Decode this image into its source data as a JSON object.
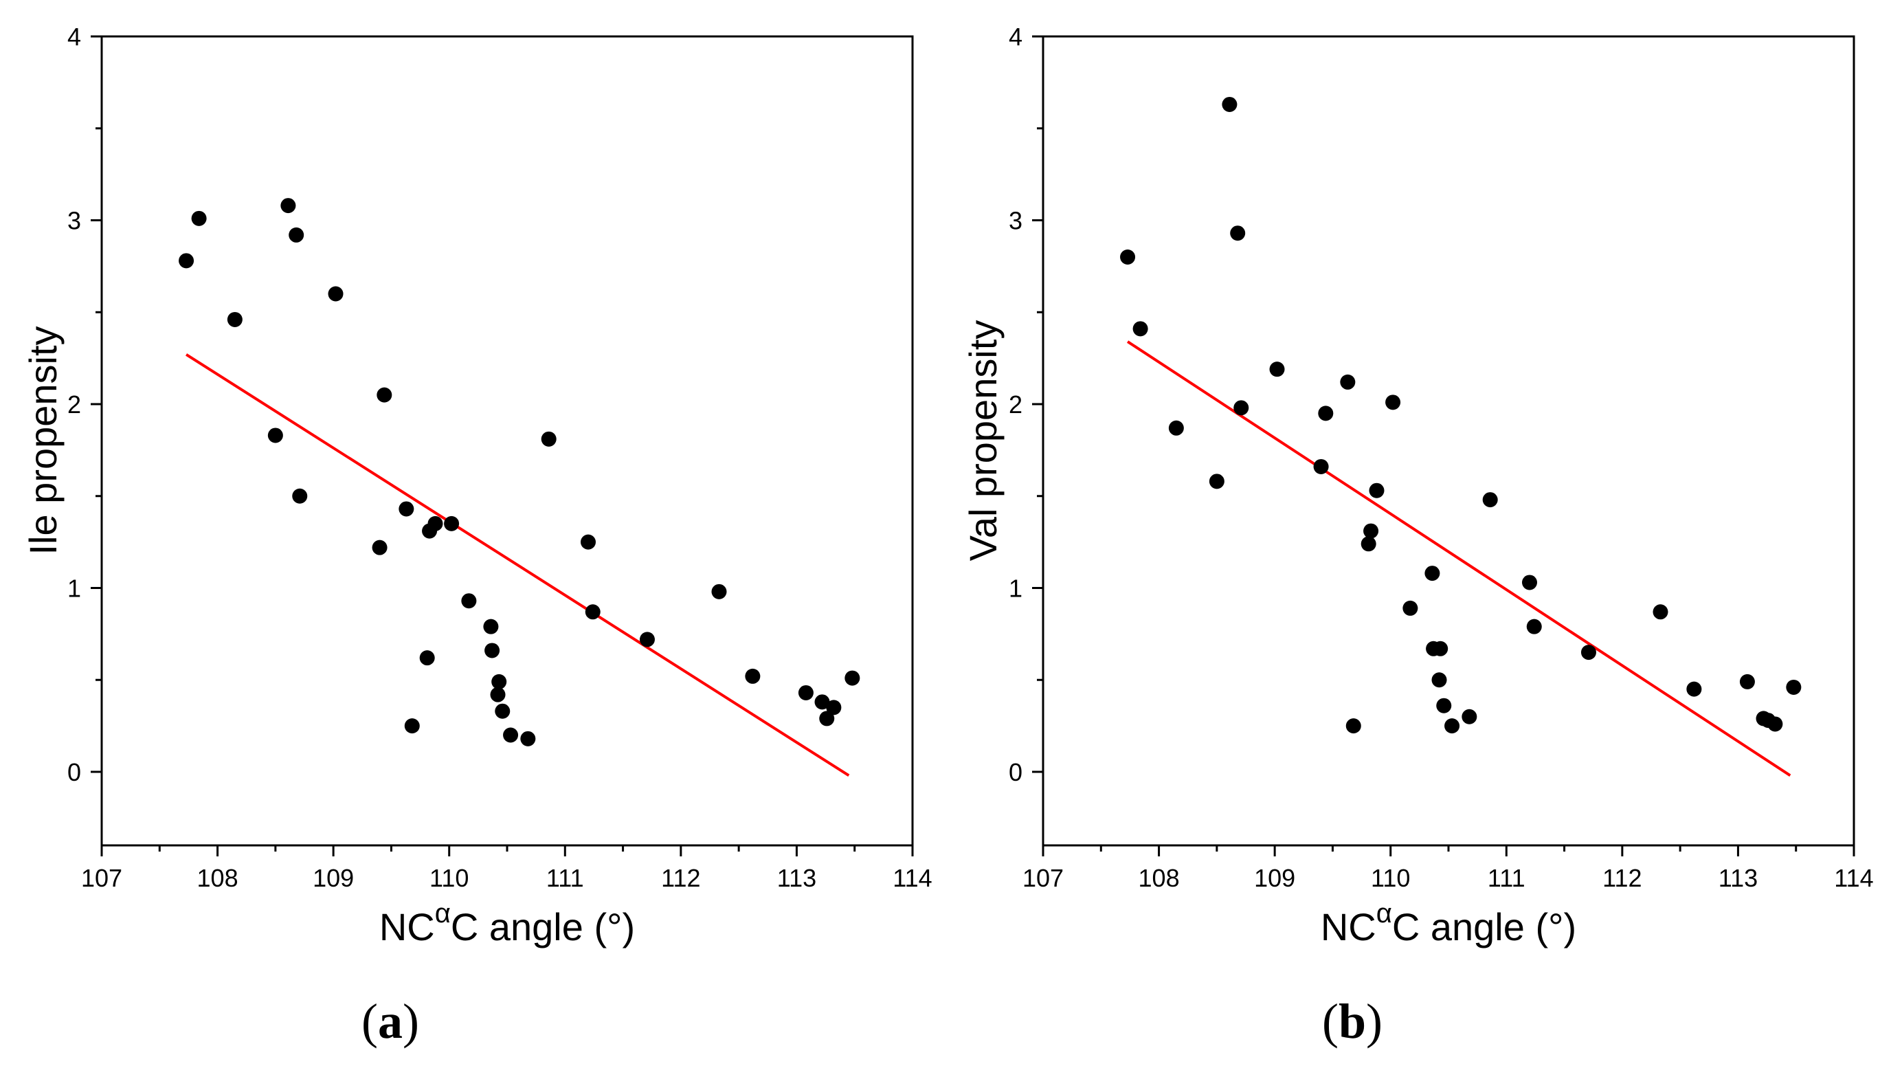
{
  "chart_data": [
    {
      "type": "scatter",
      "panel_label": "a",
      "title": "",
      "xlabel": {
        "prefix": "NC",
        "superscript": "α",
        "suffix": "C angle (°)"
      },
      "ylabel": "Ile propensity",
      "xlim": [
        107,
        114
      ],
      "ylim": [
        -0.4,
        4
      ],
      "xticks": [
        107,
        108,
        109,
        110,
        111,
        112,
        113,
        114
      ],
      "yticks": [
        0,
        1,
        2,
        3,
        4
      ],
      "xtick_labels": [
        "107",
        "108",
        "109",
        "110",
        "111",
        "112",
        "113",
        "114"
      ],
      "ytick_labels": [
        "0",
        "1",
        "2",
        "3",
        "4"
      ],
      "grid": false,
      "legend": "none",
      "point_color": "#000000",
      "fit_color": "#ff0000",
      "points": [
        [
          107.73,
          2.78
        ],
        [
          107.84,
          3.01
        ],
        [
          108.15,
          2.46
        ],
        [
          108.5,
          1.83
        ],
        [
          108.61,
          3.08
        ],
        [
          108.68,
          2.92
        ],
        [
          108.71,
          1.5
        ],
        [
          109.02,
          2.6
        ],
        [
          109.4,
          1.22
        ],
        [
          109.44,
          2.05
        ],
        [
          109.63,
          1.43
        ],
        [
          109.68,
          0.25
        ],
        [
          109.81,
          0.62
        ],
        [
          109.83,
          1.31
        ],
        [
          109.88,
          1.35
        ],
        [
          110.02,
          1.35
        ],
        [
          110.17,
          0.93
        ],
        [
          110.36,
          0.79
        ],
        [
          110.37,
          0.66
        ],
        [
          110.42,
          0.42
        ],
        [
          110.43,
          0.49
        ],
        [
          110.46,
          0.33
        ],
        [
          110.53,
          0.2
        ],
        [
          110.68,
          0.18
        ],
        [
          110.86,
          1.81
        ],
        [
          111.2,
          1.25
        ],
        [
          111.24,
          0.87
        ],
        [
          111.71,
          0.72
        ],
        [
          112.33,
          0.98
        ],
        [
          112.62,
          0.52
        ],
        [
          113.08,
          0.43
        ],
        [
          113.22,
          0.38
        ],
        [
          113.26,
          0.29
        ],
        [
          113.32,
          0.35
        ],
        [
          113.48,
          0.51
        ]
      ],
      "fit_line": [
        [
          107.73,
          2.27
        ],
        [
          113.45,
          -0.02
        ]
      ]
    },
    {
      "type": "scatter",
      "panel_label": "b",
      "title": "",
      "xlabel": {
        "prefix": "NC",
        "superscript": "α",
        "suffix": "C angle (°)"
      },
      "ylabel": "Val propensity",
      "xlim": [
        107,
        114
      ],
      "ylim": [
        -0.4,
        4
      ],
      "xticks": [
        107,
        108,
        109,
        110,
        111,
        112,
        113,
        114
      ],
      "yticks": [
        0,
        1,
        2,
        3,
        4
      ],
      "xtick_labels": [
        "107",
        "108",
        "109",
        "110",
        "111",
        "112",
        "113",
        "114"
      ],
      "ytick_labels": [
        "0",
        "1",
        "2",
        "3",
        "4"
      ],
      "grid": false,
      "legend": "none",
      "point_color": "#000000",
      "fit_color": "#ff0000",
      "points": [
        [
          107.73,
          2.8
        ],
        [
          107.84,
          2.41
        ],
        [
          108.15,
          1.87
        ],
        [
          108.5,
          1.58
        ],
        [
          108.61,
          3.63
        ],
        [
          108.68,
          2.93
        ],
        [
          108.71,
          1.98
        ],
        [
          109.02,
          2.19
        ],
        [
          109.4,
          1.66
        ],
        [
          109.44,
          1.95
        ],
        [
          109.63,
          2.12
        ],
        [
          109.68,
          0.25
        ],
        [
          109.81,
          1.24
        ],
        [
          109.83,
          1.31
        ],
        [
          109.88,
          1.53
        ],
        [
          110.02,
          2.01
        ],
        [
          110.17,
          0.89
        ],
        [
          110.36,
          1.08
        ],
        [
          110.37,
          0.67
        ],
        [
          110.42,
          0.5
        ],
        [
          110.43,
          0.67
        ],
        [
          110.46,
          0.36
        ],
        [
          110.53,
          0.25
        ],
        [
          110.68,
          0.3
        ],
        [
          110.86,
          1.48
        ],
        [
          111.2,
          1.03
        ],
        [
          111.24,
          0.79
        ],
        [
          111.71,
          0.65
        ],
        [
          112.33,
          0.87
        ],
        [
          112.62,
          0.45
        ],
        [
          113.08,
          0.49
        ],
        [
          113.22,
          0.29
        ],
        [
          113.26,
          0.28
        ],
        [
          113.32,
          0.26
        ],
        [
          113.48,
          0.46
        ]
      ],
      "fit_line": [
        [
          107.73,
          2.34
        ],
        [
          113.45,
          -0.02
        ]
      ]
    }
  ]
}
